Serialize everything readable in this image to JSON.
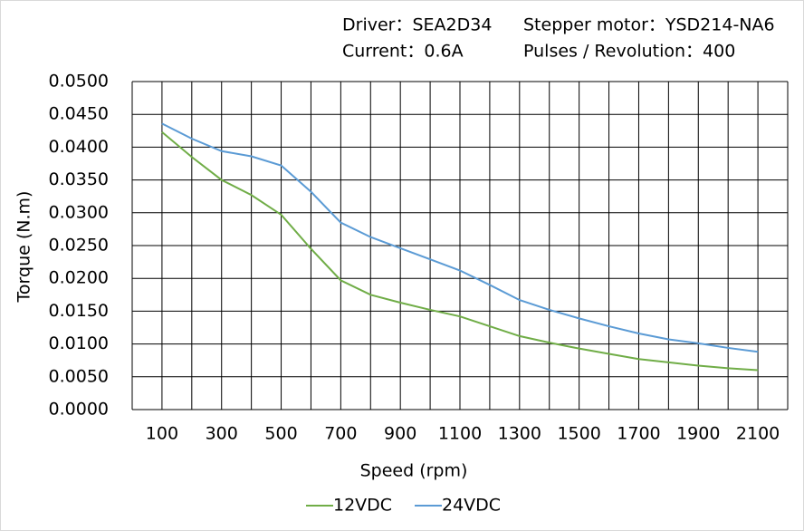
{
  "chart_data": {
    "type": "line",
    "header": [
      "Driver：SEA2D34",
      "Stepper motor：YSD214-NA6",
      "Current：0.6A",
      "Pulses / Revolution：400"
    ],
    "xlabel": "Speed  (rpm)",
    "ylabel": "Torque (N.m)",
    "x": [
      100,
      200,
      300,
      400,
      500,
      600,
      700,
      800,
      900,
      1000,
      1100,
      1200,
      1300,
      1400,
      1500,
      1600,
      1700,
      1800,
      1900,
      2000,
      2100
    ],
    "series": [
      {
        "name": "12VDC",
        "color": "#70ad47",
        "values": [
          0.0423,
          0.0385,
          0.035,
          0.0327,
          0.0297,
          0.0245,
          0.0197,
          0.0175,
          0.0163,
          0.0152,
          0.0142,
          0.0127,
          0.0112,
          0.0102,
          0.0093,
          0.0085,
          0.0077,
          0.0072,
          0.0067,
          0.0063,
          0.006
        ]
      },
      {
        "name": "24VDC",
        "color": "#5b9bd5",
        "values": [
          0.0436,
          0.0413,
          0.0394,
          0.0386,
          0.0372,
          0.0332,
          0.0285,
          0.0263,
          0.0246,
          0.0229,
          0.0212,
          0.019,
          0.0167,
          0.0152,
          0.0139,
          0.0127,
          0.0116,
          0.0107,
          0.0101,
          0.0094,
          0.0088
        ]
      }
    ],
    "xlim": [
      0,
      2200
    ],
    "xticks": [
      100,
      300,
      500,
      700,
      900,
      1100,
      1300,
      1500,
      1700,
      1900,
      2100
    ],
    "xgrid": [
      0,
      200,
      400,
      600,
      800,
      1000,
      1200,
      1400,
      1600,
      1800,
      2000,
      2200
    ],
    "ylim": [
      0,
      0.05
    ],
    "yticks": [
      {
        "value": 0,
        "label": "0.0000"
      },
      {
        "value": 0.005,
        "label": "0.0050"
      },
      {
        "value": 0.01,
        "label": "0.0100"
      },
      {
        "value": 0.015,
        "label": "0.0150"
      },
      {
        "value": 0.02,
        "label": "0.0200"
      },
      {
        "value": 0.025,
        "label": "0.0250"
      },
      {
        "value": 0.03,
        "label": "0.0300"
      },
      {
        "value": 0.035,
        "label": "0.0350"
      },
      {
        "value": 0.04,
        "label": "0.0400"
      },
      {
        "value": 0.045,
        "label": "0.0450"
      },
      {
        "value": 0.05,
        "label": "0.0500"
      }
    ],
    "grid": true,
    "legend": "bottom"
  }
}
